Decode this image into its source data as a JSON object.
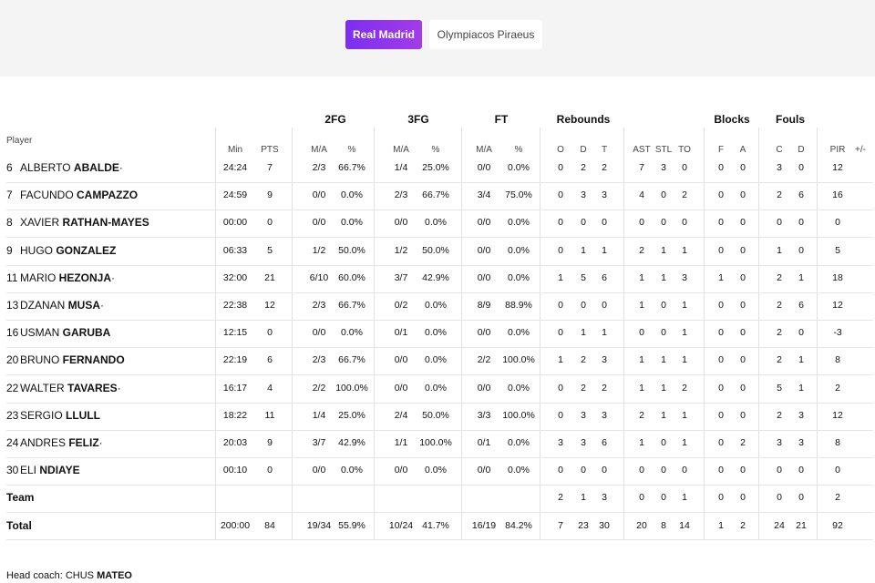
{
  "tabs": [
    {
      "label": "Real Madrid",
      "active": true
    },
    {
      "label": "Olympiacos Piraeus",
      "active": false
    }
  ],
  "group_headers": [
    "2FG",
    "3FG",
    "FT",
    "Rebounds",
    "Blocks",
    "Fouls"
  ],
  "player_header": "Player",
  "columns": [
    "Min",
    "PTS",
    "M/A",
    "%",
    "M/A",
    "%",
    "M/A",
    "%",
    "O",
    "D",
    "T",
    "AST",
    "STL",
    "TO",
    "F",
    "A",
    "C",
    "D",
    "PIR",
    "+/-"
  ],
  "players": [
    {
      "num": "6",
      "first": "ALBERTO",
      "last": "ABALDE",
      "starter": "·",
      "stats": [
        "24:24",
        "7",
        "2/3",
        "66.7%",
        "1/4",
        "25.0%",
        "0/0",
        "0.0%",
        "0",
        "2",
        "2",
        "7",
        "3",
        "0",
        "0",
        "0",
        "3",
        "0",
        "12",
        ""
      ]
    },
    {
      "num": "7",
      "first": "FACUNDO",
      "last": "CAMPAZZO",
      "starter": "",
      "stats": [
        "24:59",
        "9",
        "0/0",
        "0.0%",
        "2/3",
        "66.7%",
        "3/4",
        "75.0%",
        "0",
        "3",
        "3",
        "4",
        "0",
        "2",
        "0",
        "0",
        "2",
        "6",
        "16",
        ""
      ]
    },
    {
      "num": "8",
      "first": "XAVIER",
      "last": "RATHAN-MAYES",
      "starter": "",
      "stats": [
        "00:00",
        "0",
        "0/0",
        "0.0%",
        "0/0",
        "0.0%",
        "0/0",
        "0.0%",
        "0",
        "0",
        "0",
        "0",
        "0",
        "0",
        "0",
        "0",
        "0",
        "0",
        "0",
        ""
      ]
    },
    {
      "num": "9",
      "first": "HUGO",
      "last": "GONZALEZ",
      "starter": "",
      "stats": [
        "06:33",
        "5",
        "1/2",
        "50.0%",
        "1/2",
        "50.0%",
        "0/0",
        "0.0%",
        "0",
        "1",
        "1",
        "2",
        "1",
        "1",
        "0",
        "0",
        "1",
        "0",
        "5",
        ""
      ]
    },
    {
      "num": "11",
      "first": "MARIO",
      "last": "HEZONJA",
      "starter": "·",
      "stats": [
        "32:00",
        "21",
        "6/10",
        "60.0%",
        "3/7",
        "42.9%",
        "0/0",
        "0.0%",
        "1",
        "5",
        "6",
        "1",
        "1",
        "3",
        "1",
        "0",
        "2",
        "1",
        "18",
        ""
      ]
    },
    {
      "num": "13",
      "first": "DZANAN",
      "last": "MUSA",
      "starter": "·",
      "stats": [
        "22:38",
        "12",
        "2/3",
        "66.7%",
        "0/2",
        "0.0%",
        "8/9",
        "88.9%",
        "0",
        "0",
        "0",
        "1",
        "0",
        "1",
        "0",
        "0",
        "2",
        "6",
        "12",
        ""
      ]
    },
    {
      "num": "16",
      "first": "USMAN",
      "last": "GARUBA",
      "starter": "",
      "stats": [
        "12:15",
        "0",
        "0/0",
        "0.0%",
        "0/1",
        "0.0%",
        "0/0",
        "0.0%",
        "0",
        "1",
        "1",
        "0",
        "0",
        "1",
        "0",
        "0",
        "2",
        "0",
        "-3",
        ""
      ]
    },
    {
      "num": "20",
      "first": "BRUNO",
      "last": "FERNANDO",
      "starter": "",
      "stats": [
        "22:19",
        "6",
        "2/3",
        "66.7%",
        "0/0",
        "0.0%",
        "2/2",
        "100.0%",
        "1",
        "2",
        "3",
        "1",
        "1",
        "1",
        "0",
        "0",
        "2",
        "1",
        "8",
        ""
      ]
    },
    {
      "num": "22",
      "first": "WALTER",
      "last": "TAVARES",
      "starter": "·",
      "stats": [
        "16:17",
        "4",
        "2/2",
        "100.0%",
        "0/0",
        "0.0%",
        "0/0",
        "0.0%",
        "0",
        "2",
        "2",
        "1",
        "1",
        "2",
        "0",
        "0",
        "5",
        "1",
        "2",
        ""
      ]
    },
    {
      "num": "23",
      "first": "SERGIO",
      "last": "LLULL",
      "starter": "",
      "stats": [
        "18:22",
        "11",
        "1/4",
        "25.0%",
        "2/4",
        "50.0%",
        "3/3",
        "100.0%",
        "0",
        "3",
        "3",
        "2",
        "1",
        "1",
        "0",
        "0",
        "2",
        "3",
        "12",
        ""
      ]
    },
    {
      "num": "24",
      "first": "ANDRES",
      "last": "FELIZ",
      "starter": "·",
      "stats": [
        "20:03",
        "9",
        "3/7",
        "42.9%",
        "1/1",
        "100.0%",
        "0/1",
        "0.0%",
        "3",
        "3",
        "6",
        "1",
        "0",
        "1",
        "0",
        "2",
        "3",
        "3",
        "8",
        ""
      ]
    },
    {
      "num": "30",
      "first": "ELI",
      "last": "NDIAYE",
      "starter": "",
      "stats": [
        "00:10",
        "0",
        "0/0",
        "0.0%",
        "0/0",
        "0.0%",
        "0/0",
        "0.0%",
        "0",
        "0",
        "0",
        "0",
        "0",
        "0",
        "0",
        "0",
        "0",
        "0",
        "0",
        ""
      ]
    }
  ],
  "team_row": {
    "label": "Team",
    "stats": [
      "",
      "",
      "",
      "",
      "",
      "",
      "",
      "",
      "2",
      "1",
      "3",
      "0",
      "0",
      "1",
      "0",
      "0",
      "0",
      "0",
      "2",
      ""
    ]
  },
  "total_row": {
    "label": "Total",
    "stats": [
      "200:00",
      "84",
      "19/34",
      "55.9%",
      "10/24",
      "41.7%",
      "16/19",
      "84.2%",
      "7",
      "23",
      "30",
      "20",
      "8",
      "14",
      "1",
      "2",
      "24",
      "21",
      "92",
      ""
    ]
  },
  "coach": {
    "label": "Head coach:",
    "first": "CHUS",
    "last": "MATEO"
  }
}
